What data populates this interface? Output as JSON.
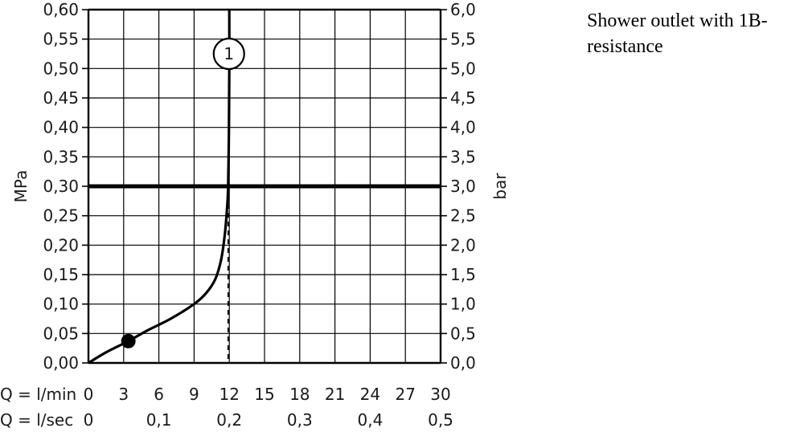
{
  "caption": "Shower outlet with 1B-resistance",
  "chart_data": {
    "type": "line",
    "x_unit_primary": "l/min",
    "x_unit_secondary": "l/sec",
    "xlim": [
      0,
      30
    ],
    "ylim": [
      0,
      0.6
    ],
    "y2lim": [
      0,
      6.0
    ],
    "ylabel": "MPa",
    "y2label": "bar",
    "row_labels": [
      "Q = l/min",
      "Q = l/sec"
    ],
    "x_ticks_primary": [
      {
        "v": 0,
        "label": "0"
      },
      {
        "v": 3,
        "label": "3"
      },
      {
        "v": 6,
        "label": "6"
      },
      {
        "v": 9,
        "label": "9"
      },
      {
        "v": 12,
        "label": "12"
      },
      {
        "v": 15,
        "label": "15"
      },
      {
        "v": 18,
        "label": "18"
      },
      {
        "v": 21,
        "label": "21"
      },
      {
        "v": 24,
        "label": "24"
      },
      {
        "v": 27,
        "label": "27"
      },
      {
        "v": 30,
        "label": "30"
      }
    ],
    "x_ticks_secondary": [
      {
        "v": 0,
        "label": "0"
      },
      {
        "v": 6,
        "label": "0,1"
      },
      {
        "v": 12,
        "label": "0,2"
      },
      {
        "v": 18,
        "label": "0,3"
      },
      {
        "v": 24,
        "label": "0,4"
      },
      {
        "v": 30,
        "label": "0,5"
      }
    ],
    "y_ticks": [
      {
        "v": 0.0,
        "label": "0,00"
      },
      {
        "v": 0.05,
        "label": "0,05"
      },
      {
        "v": 0.1,
        "label": "0,10"
      },
      {
        "v": 0.15,
        "label": "0,15"
      },
      {
        "v": 0.2,
        "label": "0,20"
      },
      {
        "v": 0.25,
        "label": "0,25"
      },
      {
        "v": 0.3,
        "label": "0,30"
      },
      {
        "v": 0.35,
        "label": "0,35"
      },
      {
        "v": 0.4,
        "label": "0,40"
      },
      {
        "v": 0.45,
        "label": "0,45"
      },
      {
        "v": 0.5,
        "label": "0,50"
      },
      {
        "v": 0.55,
        "label": "0,55"
      },
      {
        "v": 0.6,
        "label": "0,60"
      }
    ],
    "y2_ticks": [
      {
        "v": 0.0,
        "label": "0,0"
      },
      {
        "v": 0.5,
        "label": "0,5"
      },
      {
        "v": 1.0,
        "label": "1,0"
      },
      {
        "v": 1.5,
        "label": "1,5"
      },
      {
        "v": 2.0,
        "label": "2,0"
      },
      {
        "v": 2.5,
        "label": "2,5"
      },
      {
        "v": 3.0,
        "label": "3,0"
      },
      {
        "v": 3.5,
        "label": "3,5"
      },
      {
        "v": 4.0,
        "label": "4,0"
      },
      {
        "v": 4.5,
        "label": "4,5"
      },
      {
        "v": 5.0,
        "label": "5,0"
      },
      {
        "v": 5.5,
        "label": "5,5"
      },
      {
        "v": 6.0,
        "label": "6,0"
      }
    ],
    "grid": true,
    "series": [
      {
        "label": "1",
        "label_at": {
          "x": 11.9,
          "y": 0.525
        },
        "x": [
          0,
          1.5,
          3.4,
          5,
          7,
          9,
          10,
          10.8,
          11.3,
          11.6,
          11.8,
          11.9,
          11.97,
          12.0,
          12.0
        ],
        "y": [
          0,
          0.018,
          0.037,
          0.055,
          0.075,
          0.1,
          0.118,
          0.142,
          0.175,
          0.215,
          0.26,
          0.3,
          0.4,
          0.5,
          0.6
        ]
      }
    ],
    "reference_line": {
      "y": 0.3
    },
    "drop_line": {
      "x": 11.9,
      "from_y": 0.3,
      "to_y": 0
    },
    "marker_point": {
      "x": 3.4,
      "y": 0.037
    }
  }
}
